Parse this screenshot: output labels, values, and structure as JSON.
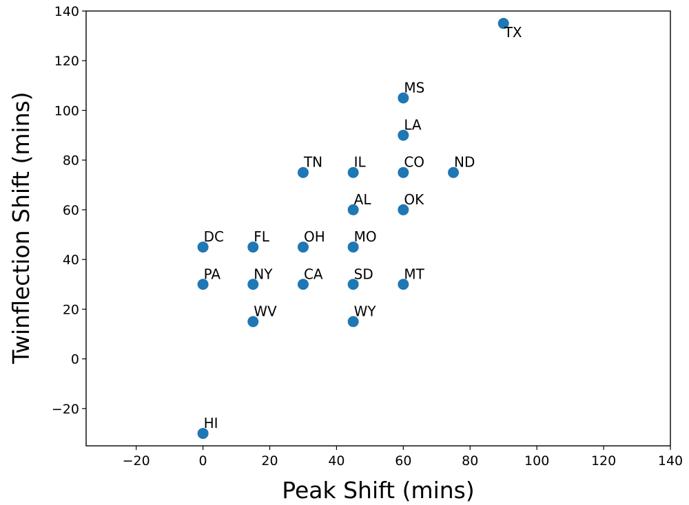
{
  "chart_data": {
    "type": "scatter",
    "title": "",
    "xlabel": "Peak Shift (mins)",
    "ylabel": "Twinflection Shift (mins)",
    "xlim": [
      -35,
      140
    ],
    "ylim": [
      -35,
      140
    ],
    "xticks": [
      -20,
      0,
      20,
      40,
      60,
      80,
      100,
      120,
      140
    ],
    "yticks": [
      -20,
      0,
      20,
      40,
      60,
      80,
      100,
      120,
      140
    ],
    "grid": false,
    "legend": "none",
    "color": "#1f77b4",
    "points": [
      {
        "label": "TX",
        "x": 90,
        "y": 135
      },
      {
        "label": "MS",
        "x": 60,
        "y": 105
      },
      {
        "label": "LA",
        "x": 60,
        "y": 90
      },
      {
        "label": "TN",
        "x": 30,
        "y": 75
      },
      {
        "label": "IL",
        "x": 45,
        "y": 75
      },
      {
        "label": "CO",
        "x": 60,
        "y": 75
      },
      {
        "label": "ND",
        "x": 75,
        "y": 75
      },
      {
        "label": "AL",
        "x": 45,
        "y": 60
      },
      {
        "label": "OK",
        "x": 60,
        "y": 60
      },
      {
        "label": "DC",
        "x": 0,
        "y": 45
      },
      {
        "label": "FL",
        "x": 15,
        "y": 45
      },
      {
        "label": "OH",
        "x": 30,
        "y": 45
      },
      {
        "label": "MO",
        "x": 45,
        "y": 45
      },
      {
        "label": "PA",
        "x": 0,
        "y": 30
      },
      {
        "label": "NY",
        "x": 15,
        "y": 30
      },
      {
        "label": "CA",
        "x": 30,
        "y": 30
      },
      {
        "label": "SD",
        "x": 45,
        "y": 30
      },
      {
        "label": "MT",
        "x": 60,
        "y": 30
      },
      {
        "label": "WV",
        "x": 15,
        "y": 15
      },
      {
        "label": "WY",
        "x": 45,
        "y": 15
      },
      {
        "label": "HI",
        "x": 0,
        "y": -30
      }
    ]
  }
}
